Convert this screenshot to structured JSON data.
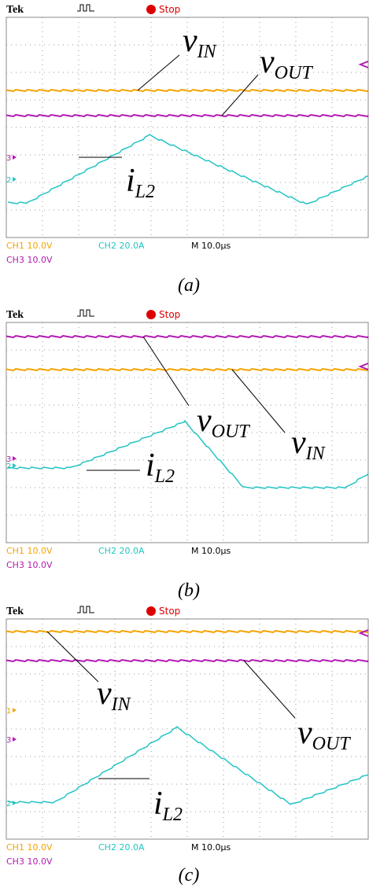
{
  "panels": [
    {
      "header": {
        "brand": "Tek",
        "status": "Stop"
      },
      "markers": [
        "3",
        "2"
      ],
      "labels": [
        {
          "base": "v",
          "sub": "IN"
        },
        {
          "base": "v",
          "sub": "OUT"
        },
        {
          "base": "i",
          "sub": "L2"
        }
      ],
      "footer": {
        "ch1": "CH1  10.0V",
        "ch2": "CH2  20.0A",
        "time": "M 10.0µs",
        "ch3": "CH3  10.0V"
      },
      "caption": "(a)"
    },
    {
      "header": {
        "brand": "Tek",
        "status": "Stop"
      },
      "markers": [
        "3",
        "2"
      ],
      "labels": [
        {
          "base": "v",
          "sub": "OUT"
        },
        {
          "base": "v",
          "sub": "IN"
        },
        {
          "base": "i",
          "sub": "L2"
        }
      ],
      "footer": {
        "ch1": "CH1  10.0V",
        "ch2": "CH2  20.0A",
        "time": "M 10.0µs",
        "ch3": "CH3  10.0V"
      },
      "caption": "(b)"
    },
    {
      "header": {
        "brand": "Tek",
        "status": "Stop"
      },
      "markers": [
        "1",
        "3",
        "2"
      ],
      "labels": [
        {
          "base": "v",
          "sub": "IN"
        },
        {
          "base": "i",
          "sub": "L2"
        },
        {
          "base": "v",
          "sub": "OUT"
        }
      ],
      "footer": {
        "ch1": "CH1  10.0V",
        "ch2": "CH2  20.0A",
        "time": "M 10.0µs",
        "ch3": "CH3  10.0V"
      },
      "caption": "(c)"
    }
  ]
}
